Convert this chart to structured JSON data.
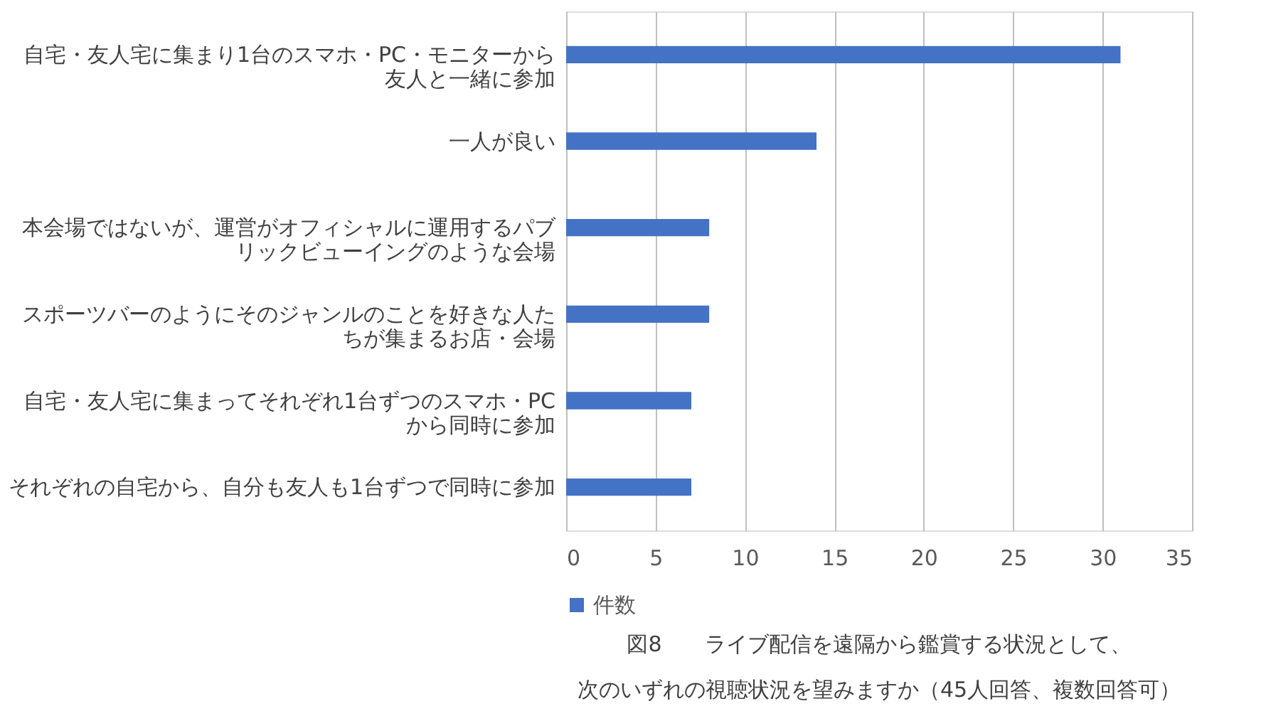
{
  "chart_data": {
    "type": "bar",
    "orientation": "horizontal",
    "title": "図8　　ライブ配信を遠隔から鑑賞する状況として、次のいずれの視聴状況を望みますか（45人回答、複数回答可）",
    "categories": [
      "自宅・友人宅に集まり1台のスマホ・PC・モニターから友人と一緒に参加",
      "一人が良い",
      "本会場ではないが、運営がオフィシャルに運用するパブリックビューイングのような会場",
      "スポーツバーのようにそのジャンルのことを好きな人たちが集まるお店・会場",
      "自宅・友人宅に集まってそれぞれ1台ずつのスマホ・PCから同時に参加",
      "それぞれの自宅から、自分も友人も1台ずつで同時に参加"
    ],
    "series": [
      {
        "name": "件数",
        "color": "#4472c4",
        "values": [
          31,
          14,
          8,
          8,
          7,
          7
        ]
      }
    ],
    "xlim": [
      0,
      35
    ],
    "xticks": [
      0,
      5,
      10,
      15,
      20,
      25,
      30,
      35
    ],
    "grid": "x",
    "legend": "bottom"
  }
}
